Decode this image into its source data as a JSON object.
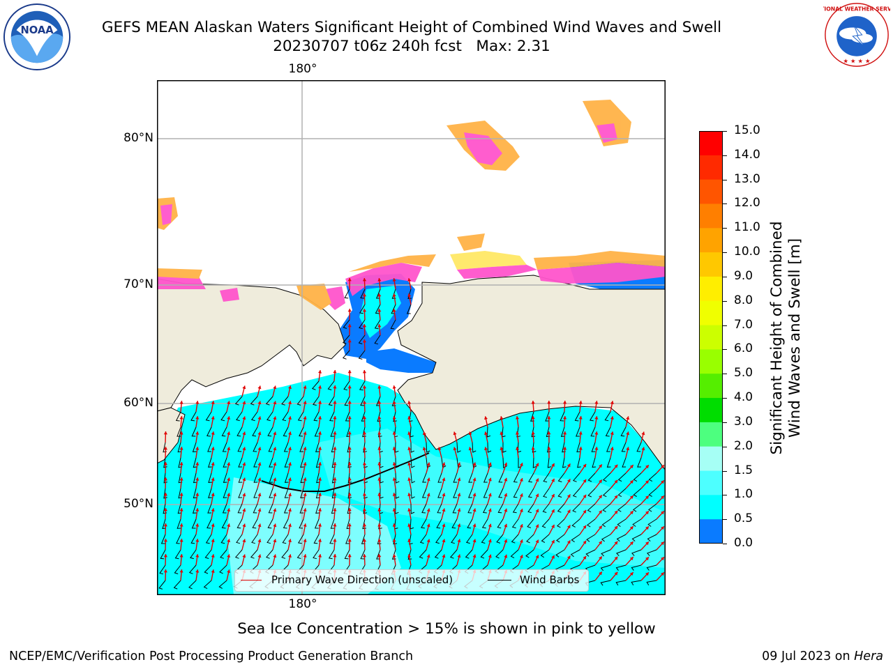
{
  "header": {
    "title_line1": "GEFS MEAN Alaskan Waters Significant Height of Combined Wind Waves and Swell",
    "title_line2": "20230707 t06z 240h fcst   Max: 2.31"
  },
  "logos": {
    "noaa_text": "NOAA",
    "nws_text": "NATIONAL WEATHER SERVICE"
  },
  "map": {
    "lon_label_top": "180°",
    "lon_label_bottom": "180°",
    "lat_labels": [
      "80°N",
      "70°N",
      "60°N",
      "50°N"
    ],
    "colors": {
      "land": "#efecdc",
      "ocean_0_5_1": "#0a7bff",
      "ocean_1_1_5": "#00ffff",
      "ocean_1_5_2": "#4dfdfd",
      "ocean_2_3": "#a8fefe",
      "ice_pink": "#ff55cc",
      "ice_orange": "#ffb347",
      "ice_yellow": "#ffe866",
      "wave_arrow": "#e00000",
      "wind_barb": "#000000"
    }
  },
  "legend": {
    "primary_wave": "Primary Wave Direction (unscaled)",
    "wind_barbs": "Wind Barbs"
  },
  "colorbar": {
    "ticks": [
      "15.0",
      "14.0",
      "13.0",
      "12.0",
      "11.0",
      "10.0",
      "9.0",
      "8.0",
      "7.0",
      "6.0",
      "5.0",
      "4.0",
      "3.0",
      "2.0",
      "1.5",
      "1.0",
      "0.5",
      "0.0"
    ],
    "colors": [
      "#ff0000",
      "#ff2a00",
      "#ff5500",
      "#ff7f00",
      "#ffa300",
      "#ffc800",
      "#ffee00",
      "#f0ff00",
      "#ccff00",
      "#99ff00",
      "#55ee00",
      "#00dd00",
      "#4dff7f",
      "#a6fff5",
      "#4dffff",
      "#00ffff",
      "#0a7bff",
      "#0000ff"
    ],
    "label_line1": "Significant Height of Combined",
    "label_line2": "Wind Waves and Swell [m]"
  },
  "footer": {
    "note": "Sea Ice Concentration > 15% is shown in pink to yellow",
    "left": "NCEP/EMC/Verification Post Processing Product Generation Branch",
    "right_date": "09 Jul 2023 on ",
    "right_host": "Hera"
  }
}
